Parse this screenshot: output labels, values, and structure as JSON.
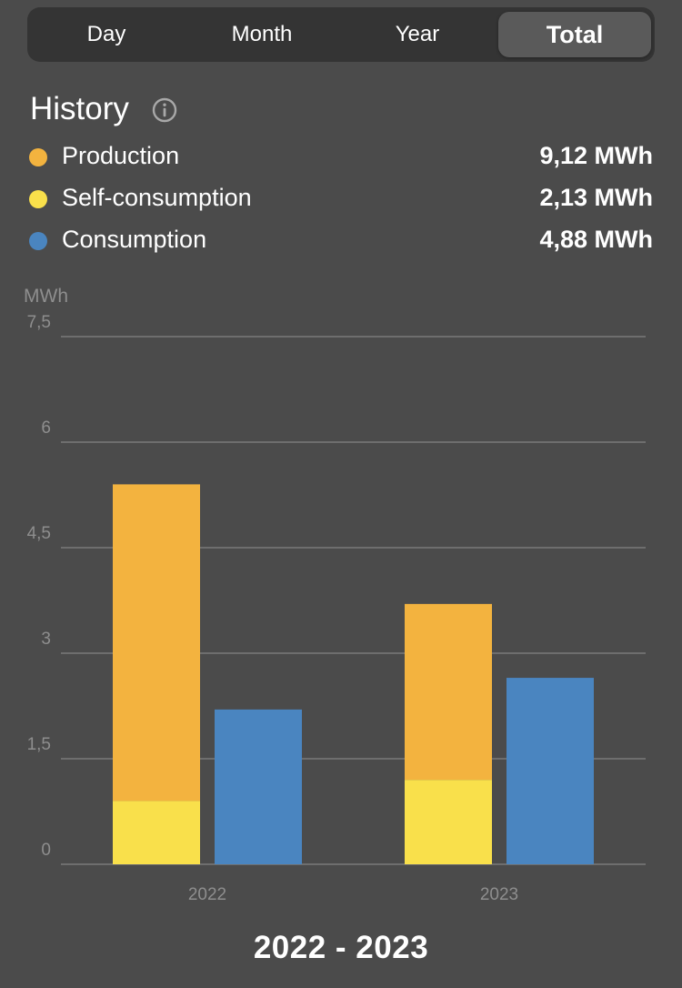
{
  "tabs": [
    {
      "label": "Day",
      "active": false
    },
    {
      "label": "Month",
      "active": false
    },
    {
      "label": "Year",
      "active": false
    },
    {
      "label": "Total",
      "active": true
    }
  ],
  "header": {
    "title": "History",
    "info_icon": "info-circle-icon"
  },
  "legend": [
    {
      "label": "Production",
      "value": "9,12 MWh",
      "color": "#f3b33f"
    },
    {
      "label": "Self-consumption",
      "value": "2,13 MWh",
      "color": "#f9e04b"
    },
    {
      "label": "Consumption",
      "value": "4,88 MWh",
      "color": "#4a85c0"
    }
  ],
  "chart_data": {
    "type": "bar",
    "ylabel": "MWh",
    "ylim": [
      0,
      7.5
    ],
    "y_ticks": [
      0,
      1.5,
      3,
      4.5,
      6,
      7.5
    ],
    "y_tick_labels": [
      "0",
      "1,5",
      "3",
      "4,5",
      "6",
      "7,5"
    ],
    "categories": [
      "2022",
      "2023"
    ],
    "series": [
      {
        "name": "Self-consumption",
        "values": [
          0.9,
          1.2
        ],
        "color": "#f9e04b",
        "stack": "production"
      },
      {
        "name": "Production",
        "values": [
          5.4,
          3.7
        ],
        "color": "#f3b33f",
        "stack": "production"
      },
      {
        "name": "Consumption",
        "values": [
          2.2,
          2.65
        ],
        "color": "#4a85c0",
        "stack": "consumption"
      }
    ],
    "grid": true
  },
  "footer": {
    "date_range": "2022 - 2023"
  }
}
